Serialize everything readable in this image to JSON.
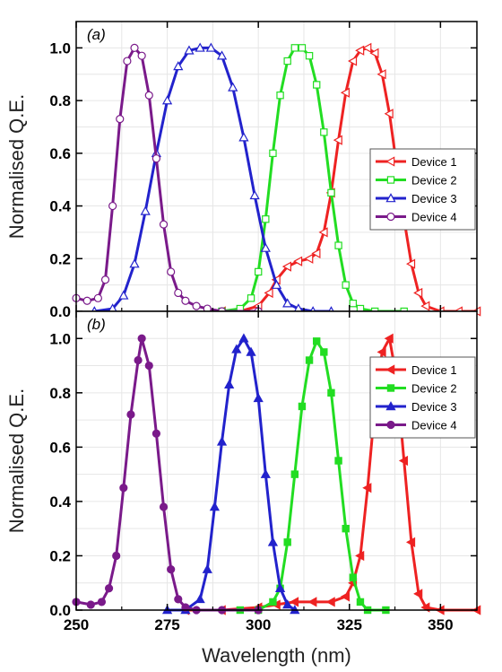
{
  "chart_data": [
    {
      "type": "line",
      "panel_label": "(a)",
      "ylabel": "Normalised Q.E.",
      "xlabel": "",
      "xlim": [
        250,
        360
      ],
      "ylim": [
        0,
        1.1
      ],
      "xticks": [
        "250",
        "275",
        "300",
        "325",
        "350"
      ],
      "yticks": [
        "0.0",
        "0.2",
        "0.4",
        "0.6",
        "0.8",
        "1.0"
      ],
      "grid": true,
      "legend_position": "right",
      "marker_fill": "open",
      "series": [
        {
          "name": "Device 1",
          "color": "#ee2222",
          "marker": "triangle-left",
          "x": [
            290,
            295,
            300,
            303,
            305,
            308,
            311,
            314,
            316,
            318,
            320,
            322,
            324,
            326,
            328,
            330,
            332,
            334,
            336,
            338,
            340,
            342,
            344,
            346,
            350,
            355,
            360
          ],
          "y": [
            0.0,
            0.0,
            0.02,
            0.07,
            0.12,
            0.17,
            0.19,
            0.2,
            0.22,
            0.3,
            0.45,
            0.65,
            0.83,
            0.95,
            0.99,
            1.0,
            0.98,
            0.9,
            0.75,
            0.55,
            0.35,
            0.18,
            0.07,
            0.02,
            0.0,
            0.0,
            0.0
          ]
        },
        {
          "name": "Device 2",
          "color": "#22dd22",
          "marker": "square",
          "x": [
            290,
            295,
            298,
            300,
            302,
            304,
            306,
            308,
            310,
            312,
            314,
            316,
            318,
            320,
            322,
            324,
            326,
            328,
            332,
            340
          ],
          "y": [
            0.0,
            0.01,
            0.05,
            0.15,
            0.35,
            0.6,
            0.82,
            0.95,
            1.0,
            1.0,
            0.97,
            0.86,
            0.68,
            0.45,
            0.25,
            0.1,
            0.03,
            0.01,
            0.0,
            0.0
          ]
        },
        {
          "name": "Device 3",
          "color": "#2222cc",
          "marker": "triangle-up",
          "x": [
            255,
            260,
            263,
            266,
            269,
            272,
            275,
            278,
            281,
            284,
            287,
            290,
            293,
            296,
            299,
            302,
            305,
            308,
            311,
            315,
            320
          ],
          "y": [
            0.0,
            0.01,
            0.06,
            0.18,
            0.38,
            0.6,
            0.8,
            0.93,
            0.99,
            1.0,
            1.0,
            0.97,
            0.85,
            0.66,
            0.44,
            0.24,
            0.1,
            0.03,
            0.01,
            0.0,
            0.0
          ]
        },
        {
          "name": "Device 4",
          "color": "#7a1a8a",
          "marker": "circle",
          "x": [
            250,
            253,
            256,
            258,
            260,
            262,
            264,
            266,
            268,
            270,
            272,
            274,
            276,
            278,
            280,
            283,
            286,
            290,
            300
          ],
          "y": [
            0.05,
            0.04,
            0.05,
            0.12,
            0.4,
            0.73,
            0.95,
            1.0,
            0.97,
            0.82,
            0.58,
            0.33,
            0.15,
            0.07,
            0.04,
            0.02,
            0.01,
            0.0,
            0.0
          ]
        }
      ]
    },
    {
      "type": "line",
      "panel_label": "(b)",
      "ylabel": "Normalised Q.E.",
      "xlabel": "Wavelength (nm)",
      "xlim": [
        250,
        360
      ],
      "ylim": [
        0,
        1.1
      ],
      "xticks": [
        "250",
        "275",
        "300",
        "325",
        "350"
      ],
      "yticks": [
        "0.0",
        "0.2",
        "0.4",
        "0.6",
        "0.8",
        "1.0"
      ],
      "grid": true,
      "legend_position": "right",
      "marker_fill": "filled",
      "series": [
        {
          "name": "Device 1",
          "color": "#ee2222",
          "marker": "triangle-left",
          "x": [
            280,
            290,
            300,
            305,
            310,
            315,
            320,
            324,
            326,
            328,
            330,
            332,
            334,
            336,
            338,
            340,
            342,
            344,
            346,
            350,
            360
          ],
          "y": [
            0.0,
            0.0,
            0.01,
            0.02,
            0.03,
            0.03,
            0.03,
            0.05,
            0.1,
            0.2,
            0.45,
            0.75,
            0.95,
            1.0,
            0.85,
            0.55,
            0.25,
            0.06,
            0.01,
            0.0,
            0.0
          ]
        },
        {
          "name": "Device 2",
          "color": "#22dd22",
          "marker": "square",
          "x": [
            295,
            300,
            304,
            306,
            308,
            310,
            312,
            314,
            316,
            318,
            320,
            322,
            324,
            326,
            328,
            330,
            335
          ],
          "y": [
            0.0,
            0.0,
            0.03,
            0.08,
            0.25,
            0.5,
            0.75,
            0.92,
            0.99,
            0.95,
            0.8,
            0.55,
            0.3,
            0.12,
            0.03,
            0.0,
            0.0
          ]
        },
        {
          "name": "Device 3",
          "color": "#2222cc",
          "marker": "triangle-up",
          "x": [
            275,
            280,
            284,
            286,
            288,
            290,
            292,
            294,
            296,
            298,
            300,
            302,
            304,
            306,
            308,
            310
          ],
          "y": [
            0.0,
            0.0,
            0.04,
            0.15,
            0.38,
            0.62,
            0.83,
            0.96,
            1.0,
            0.95,
            0.78,
            0.5,
            0.25,
            0.08,
            0.02,
            0.0
          ]
        },
        {
          "name": "Device 4",
          "color": "#7a1a8a",
          "marker": "circle",
          "x": [
            250,
            254,
            257,
            259,
            261,
            263,
            265,
            267,
            268,
            270,
            272,
            274,
            276,
            278,
            280,
            283,
            290,
            300
          ],
          "y": [
            0.03,
            0.02,
            0.03,
            0.08,
            0.2,
            0.45,
            0.72,
            0.92,
            1.0,
            0.9,
            0.65,
            0.38,
            0.15,
            0.04,
            0.01,
            0.0,
            0.0,
            0.0
          ]
        }
      ]
    }
  ]
}
